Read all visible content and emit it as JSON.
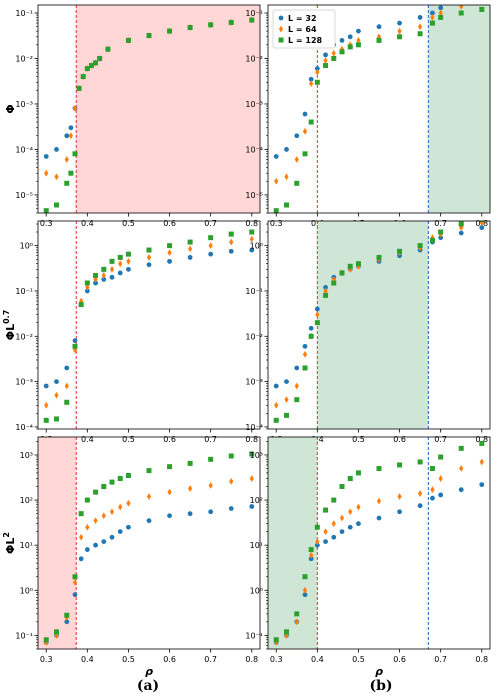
{
  "colors": {
    "L32": "#1f77b4",
    "L64": "#ff7f0e",
    "L128": "#2ca02c",
    "red_region": "#ffd7d7",
    "green_region": "#cfe6d6",
    "red_line": "#e03030",
    "blue_line": "#2060c0"
  },
  "captions": [
    "(a)",
    "(b)"
  ],
  "chart_data": [
    {
      "type": "scatter",
      "panel": "a-top",
      "ylabel": "Φ",
      "xlabel": "",
      "yscale": "log",
      "ylim": [
        4e-06,
        0.15
      ],
      "xlim": [
        0.28,
        0.82
      ],
      "yticks": [
        "10⁻⁵",
        "10⁻⁴",
        "10⁻³",
        "10⁻²",
        "10⁻¹"
      ],
      "ytick_values": [
        1e-05,
        0.0001,
        0.001,
        0.01,
        0.1
      ],
      "xticks": [
        "0.3",
        "0.4",
        "0.5",
        "0.6",
        "0.7",
        "0.8"
      ],
      "xtick_values": [
        0.3,
        0.4,
        0.5,
        0.6,
        0.7,
        0.8
      ],
      "vlines": [
        {
          "x": 0.373,
          "color": "red"
        }
      ],
      "regions": [
        {
          "from": 0.373,
          "to": 0.82,
          "color": "red"
        }
      ],
      "series": [
        {
          "name": "L = 32",
          "marker": "circle",
          "x": [
            0.3,
            0.325,
            0.35,
            0.36,
            0.37,
            0.38,
            0.39,
            0.4,
            0.41,
            0.42,
            0.43,
            0.45,
            0.5,
            0.55,
            0.6,
            0.65,
            0.7,
            0.75,
            0.8
          ],
          "y": [
            7e-05,
            0.0001,
            0.0002,
            0.0003,
            0.0008,
            0.0022,
            0.004,
            0.006,
            0.007,
            0.008,
            0.01,
            0.016,
            0.025,
            0.032,
            0.04,
            0.048,
            0.055,
            0.062,
            0.07
          ]
        },
        {
          "name": "L = 64",
          "marker": "diamond",
          "x": [
            0.3,
            0.325,
            0.35,
            0.36,
            0.37,
            0.38,
            0.39,
            0.4,
            0.41,
            0.42,
            0.43,
            0.45,
            0.5,
            0.55,
            0.6,
            0.65,
            0.7,
            0.75,
            0.8
          ],
          "y": [
            3e-05,
            2.5e-05,
            6e-05,
            0.0002,
            0.0008,
            0.0022,
            0.004,
            0.006,
            0.007,
            0.008,
            0.01,
            0.016,
            0.025,
            0.032,
            0.04,
            0.048,
            0.055,
            0.062,
            0.07
          ]
        },
        {
          "name": "L = 128",
          "marker": "square",
          "x": [
            0.3,
            0.325,
            0.35,
            0.36,
            0.37,
            0.38,
            0.39,
            0.4,
            0.41,
            0.42,
            0.43,
            0.45,
            0.5,
            0.55,
            0.6,
            0.65,
            0.7,
            0.75,
            0.8
          ],
          "y": [
            4.5e-06,
            6e-06,
            1.8e-05,
            3e-05,
            8e-05,
            0.0022,
            0.004,
            0.006,
            0.007,
            0.008,
            0.01,
            0.016,
            0.025,
            0.032,
            0.04,
            0.048,
            0.055,
            0.062,
            0.07
          ]
        }
      ]
    },
    {
      "type": "scatter",
      "panel": "b-top",
      "ylabel": "",
      "xlabel": "",
      "yscale": "log",
      "ylim": [
        4e-06,
        0.15
      ],
      "xlim": [
        0.28,
        0.82
      ],
      "yticks": [
        "10⁻⁵",
        "10⁻⁴",
        "10⁻³",
        "10⁻²",
        "10⁻¹"
      ],
      "ytick_values": [
        1e-05,
        0.0001,
        0.001,
        0.01,
        0.1
      ],
      "xticks": [
        "0.3",
        "0.4",
        "0.5",
        "0.6",
        "0.7",
        "0.8"
      ],
      "xtick_values": [
        0.3,
        0.4,
        0.5,
        0.6,
        0.7,
        0.8
      ],
      "vlines": [
        {
          "x": 0.4,
          "color": "red"
        },
        {
          "x": 0.67,
          "color": "blue"
        }
      ],
      "regions": [
        {
          "from": 0.67,
          "to": 0.82,
          "color": "green"
        }
      ],
      "legend": {
        "placement": "top-left",
        "entries": [
          "L = 32",
          "L = 64",
          "L = 128"
        ]
      },
      "series": [
        {
          "name": "L = 32",
          "marker": "circle",
          "x": [
            0.3,
            0.325,
            0.35,
            0.37,
            0.385,
            0.4,
            0.42,
            0.44,
            0.46,
            0.48,
            0.5,
            0.55,
            0.6,
            0.65,
            0.68,
            0.7,
            0.75,
            0.8
          ],
          "y": [
            7e-05,
            0.0001,
            0.0002,
            0.0006,
            0.0035,
            0.006,
            0.012,
            0.02,
            0.025,
            0.03,
            0.04,
            0.05,
            0.06,
            0.08,
            0.1,
            0.13,
            0.17,
            0.2
          ]
        },
        {
          "name": "L = 64",
          "marker": "diamond",
          "x": [
            0.3,
            0.325,
            0.35,
            0.37,
            0.385,
            0.4,
            0.42,
            0.44,
            0.46,
            0.48,
            0.5,
            0.55,
            0.6,
            0.65,
            0.68,
            0.7,
            0.75,
            0.8
          ],
          "y": [
            2e-05,
            2.5e-05,
            6e-05,
            0.00025,
            0.0028,
            0.005,
            0.009,
            0.013,
            0.016,
            0.02,
            0.025,
            0.03,
            0.04,
            0.05,
            0.08,
            0.1,
            0.14,
            0.18
          ]
        },
        {
          "name": "L = 128",
          "marker": "square",
          "x": [
            0.3,
            0.325,
            0.35,
            0.37,
            0.385,
            0.4,
            0.42,
            0.44,
            0.46,
            0.48,
            0.5,
            0.55,
            0.6,
            0.65,
            0.68,
            0.7,
            0.75,
            0.8
          ],
          "y": [
            4.5e-06,
            6e-06,
            1.8e-05,
            8e-05,
            0.0004,
            0.003,
            0.007,
            0.01,
            0.014,
            0.018,
            0.02,
            0.025,
            0.03,
            0.035,
            0.06,
            0.08,
            0.1,
            0.12
          ]
        }
      ]
    },
    {
      "type": "scatter",
      "panel": "a-mid",
      "ylabel": "ΦL^0.7",
      "xlabel": "",
      "yscale": "log",
      "ylim": [
        9e-05,
        3.5
      ],
      "xlim": [
        0.28,
        0.82
      ],
      "yticks": [
        "10⁻⁴",
        "10⁻³",
        "10⁻²",
        "10⁻¹",
        "10⁰"
      ],
      "ytick_values": [
        0.0001,
        0.001,
        0.01,
        0.1,
        1
      ],
      "xticks": [
        "0.3",
        "0.4",
        "0.5",
        "0.6",
        "0.7",
        "0.8"
      ],
      "xtick_values": [
        0.3,
        0.4,
        0.5,
        0.6,
        0.7,
        0.8
      ],
      "vlines": [
        {
          "x": 0.373,
          "color": "red"
        }
      ],
      "regions": [],
      "series": [
        {
          "name": "L = 32",
          "marker": "circle",
          "x": [
            0.3,
            0.325,
            0.35,
            0.37,
            0.385,
            0.4,
            0.42,
            0.44,
            0.46,
            0.48,
            0.5,
            0.55,
            0.6,
            0.65,
            0.7,
            0.75,
            0.8
          ],
          "y": [
            0.0008,
            0.001,
            0.002,
            0.008,
            0.05,
            0.1,
            0.15,
            0.18,
            0.2,
            0.25,
            0.3,
            0.38,
            0.45,
            0.55,
            0.65,
            0.75,
            0.8
          ]
        },
        {
          "name": "L = 64",
          "marker": "diamond",
          "x": [
            0.3,
            0.325,
            0.35,
            0.37,
            0.385,
            0.4,
            0.42,
            0.44,
            0.46,
            0.48,
            0.5,
            0.55,
            0.6,
            0.65,
            0.7,
            0.75,
            0.8
          ],
          "y": [
            0.0003,
            0.0005,
            0.0008,
            0.005,
            0.06,
            0.12,
            0.18,
            0.22,
            0.3,
            0.4,
            0.45,
            0.55,
            0.7,
            0.85,
            1.0,
            1.2,
            1.4
          ]
        },
        {
          "name": "L = 128",
          "marker": "square",
          "x": [
            0.3,
            0.325,
            0.35,
            0.37,
            0.385,
            0.4,
            0.42,
            0.44,
            0.46,
            0.48,
            0.5,
            0.55,
            0.6,
            0.65,
            0.7,
            0.75,
            0.8
          ],
          "y": [
            0.00014,
            0.00015,
            0.00035,
            0.006,
            0.05,
            0.15,
            0.22,
            0.3,
            0.45,
            0.55,
            0.65,
            0.8,
            1.0,
            1.2,
            1.5,
            1.8,
            2.0
          ]
        }
      ]
    },
    {
      "type": "scatter",
      "panel": "b-mid",
      "ylabel": "",
      "xlabel": "",
      "yscale": "log",
      "ylim": [
        9e-05,
        3.5
      ],
      "xlim": [
        0.28,
        0.82
      ],
      "yticks": [
        "10⁻⁴",
        "10⁻³",
        "10⁻²",
        "10⁻¹",
        "10⁰"
      ],
      "ytick_values": [
        0.0001,
        0.001,
        0.01,
        0.1,
        1
      ],
      "xticks": [
        "0.3",
        "0.4",
        "0.5",
        "0.6",
        "0.7",
        "0.8"
      ],
      "xtick_values": [
        0.3,
        0.4,
        0.5,
        0.6,
        0.7,
        0.8
      ],
      "vlines": [
        {
          "x": 0.4,
          "color": "red"
        },
        {
          "x": 0.67,
          "color": "blue"
        }
      ],
      "regions": [
        {
          "from": 0.4,
          "to": 0.67,
          "color": "green"
        }
      ],
      "series": [
        {
          "name": "L = 32",
          "marker": "circle",
          "x": [
            0.3,
            0.325,
            0.35,
            0.37,
            0.385,
            0.4,
            0.42,
            0.44,
            0.46,
            0.48,
            0.5,
            0.55,
            0.6,
            0.65,
            0.68,
            0.7,
            0.75,
            0.8
          ],
          "y": [
            0.0008,
            0.001,
            0.002,
            0.006,
            0.015,
            0.04,
            0.12,
            0.2,
            0.25,
            0.3,
            0.35,
            0.45,
            0.6,
            0.8,
            1.2,
            1.5,
            1.9,
            2.5
          ]
        },
        {
          "name": "L = 64",
          "marker": "diamond",
          "x": [
            0.3,
            0.325,
            0.35,
            0.37,
            0.385,
            0.4,
            0.42,
            0.44,
            0.46,
            0.48,
            0.5,
            0.55,
            0.6,
            0.65,
            0.68,
            0.7,
            0.75,
            0.8
          ],
          "y": [
            0.0003,
            0.0004,
            0.0008,
            0.004,
            0.01,
            0.03,
            0.1,
            0.18,
            0.25,
            0.3,
            0.35,
            0.5,
            0.7,
            0.9,
            1.5,
            1.8,
            2.5,
            3.2
          ]
        },
        {
          "name": "L = 128",
          "marker": "square",
          "x": [
            0.3,
            0.325,
            0.35,
            0.37,
            0.385,
            0.4,
            0.42,
            0.44,
            0.46,
            0.48,
            0.5,
            0.55,
            0.6,
            0.65,
            0.68,
            0.7,
            0.75,
            0.8
          ],
          "y": [
            0.00014,
            0.00018,
            0.0004,
            0.002,
            0.01,
            0.02,
            0.08,
            0.15,
            0.25,
            0.35,
            0.4,
            0.55,
            0.75,
            1.0,
            1.3,
            2.0,
            3.0,
            3.8
          ]
        }
      ]
    },
    {
      "type": "scatter",
      "panel": "a-bot",
      "ylabel": "ΦL^2",
      "xlabel": "ρ",
      "yscale": "log",
      "ylim": [
        0.05,
        2500
      ],
      "xlim": [
        0.28,
        0.82
      ],
      "yticks": [
        "10⁻¹",
        "10⁰",
        "10¹",
        "10²",
        "10³"
      ],
      "ytick_values": [
        0.1,
        1,
        10,
        100,
        1000
      ],
      "xticks": [
        "0.3",
        "0.4",
        "0.5",
        "0.6",
        "0.7",
        "0.8"
      ],
      "xtick_values": [
        0.3,
        0.4,
        0.5,
        0.6,
        0.7,
        0.8
      ],
      "vlines": [
        {
          "x": 0.373,
          "color": "red"
        }
      ],
      "regions": [
        {
          "from": 0.28,
          "to": 0.373,
          "color": "red"
        }
      ],
      "series": [
        {
          "name": "L = 32",
          "marker": "circle",
          "x": [
            0.3,
            0.325,
            0.35,
            0.37,
            0.385,
            0.4,
            0.42,
            0.44,
            0.46,
            0.48,
            0.5,
            0.55,
            0.6,
            0.65,
            0.7,
            0.75,
            0.8
          ],
          "y": [
            0.07,
            0.1,
            0.2,
            0.8,
            5,
            8,
            10,
            12,
            15,
            20,
            25,
            35,
            45,
            50,
            55,
            65,
            72
          ]
        },
        {
          "name": "L = 64",
          "marker": "diamond",
          "x": [
            0.3,
            0.325,
            0.35,
            0.37,
            0.385,
            0.4,
            0.42,
            0.44,
            0.46,
            0.48,
            0.5,
            0.55,
            0.6,
            0.65,
            0.7,
            0.75,
            0.8
          ],
          "y": [
            0.07,
            0.1,
            0.25,
            1.5,
            15,
            25,
            35,
            45,
            55,
            70,
            85,
            120,
            150,
            180,
            210,
            260,
            300
          ]
        },
        {
          "name": "L = 128",
          "marker": "square",
          "x": [
            0.3,
            0.325,
            0.35,
            0.37,
            0.385,
            0.4,
            0.42,
            0.44,
            0.46,
            0.48,
            0.5,
            0.55,
            0.6,
            0.65,
            0.7,
            0.75,
            0.8
          ],
          "y": [
            0.08,
            0.12,
            0.28,
            2,
            50,
            100,
            150,
            200,
            250,
            300,
            350,
            450,
            550,
            650,
            800,
            950,
            1050
          ]
        }
      ]
    },
    {
      "type": "scatter",
      "panel": "b-bot",
      "ylabel": "",
      "xlabel": "ρ",
      "yscale": "log",
      "ylim": [
        0.05,
        2500
      ],
      "xlim": [
        0.28,
        0.82
      ],
      "yticks": [
        "10⁻¹",
        "10⁰",
        "10¹",
        "10²",
        "10³"
      ],
      "ytick_values": [
        0.1,
        1,
        10,
        100,
        1000
      ],
      "xticks": [
        "0.3",
        "0.4",
        "0.5",
        "0.6",
        "0.7",
        "0.8"
      ],
      "xtick_values": [
        0.3,
        0.4,
        0.5,
        0.6,
        0.7,
        0.8
      ],
      "vlines": [
        {
          "x": 0.4,
          "color": "red"
        },
        {
          "x": 0.67,
          "color": "blue"
        }
      ],
      "regions": [
        {
          "from": 0.28,
          "to": 0.4,
          "color": "green"
        }
      ],
      "series": [
        {
          "name": "L = 32",
          "marker": "circle",
          "x": [
            0.3,
            0.325,
            0.35,
            0.37,
            0.385,
            0.4,
            0.42,
            0.44,
            0.46,
            0.48,
            0.5,
            0.55,
            0.6,
            0.65,
            0.68,
            0.7,
            0.75,
            0.8
          ],
          "y": [
            0.07,
            0.1,
            0.2,
            0.8,
            5,
            10,
            12,
            15,
            20,
            25,
            30,
            40,
            55,
            75,
            110,
            130,
            170,
            220
          ]
        },
        {
          "name": "L = 64",
          "marker": "diamond",
          "x": [
            0.3,
            0.325,
            0.35,
            0.37,
            0.385,
            0.4,
            0.42,
            0.44,
            0.46,
            0.48,
            0.5,
            0.55,
            0.6,
            0.65,
            0.68,
            0.7,
            0.75,
            0.8
          ],
          "y": [
            0.07,
            0.1,
            0.2,
            1,
            6,
            12,
            20,
            30,
            40,
            55,
            70,
            95,
            120,
            140,
            170,
            300,
            500,
            700
          ]
        },
        {
          "name": "L = 128",
          "marker": "square",
          "x": [
            0.3,
            0.325,
            0.35,
            0.37,
            0.385,
            0.4,
            0.42,
            0.44,
            0.46,
            0.48,
            0.5,
            0.55,
            0.6,
            0.65,
            0.68,
            0.7,
            0.75,
            0.8
          ],
          "y": [
            0.08,
            0.12,
            0.3,
            2,
            8,
            25,
            60,
            100,
            200,
            300,
            400,
            500,
            600,
            700,
            500,
            900,
            1400,
            1800
          ]
        }
      ]
    }
  ]
}
